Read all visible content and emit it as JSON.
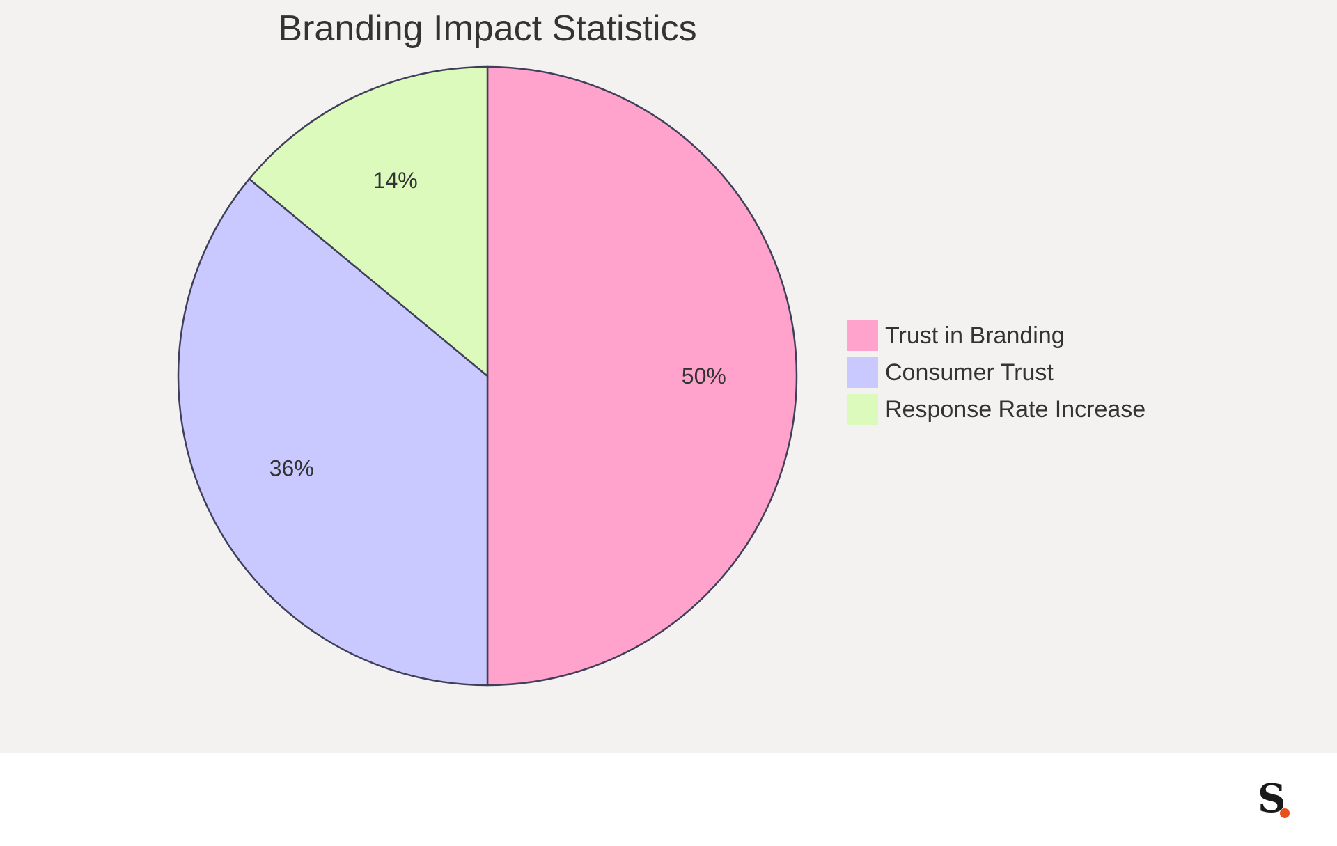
{
  "colors": {
    "background": "#f3f2f1",
    "footer": "#ffffff",
    "stroke": "#3f3f5a",
    "text": "#333333",
    "logo_dot": "#e8501c"
  },
  "logo": {
    "letter": "S",
    "icon": "brand-s-logo-icon"
  },
  "chart_data": {
    "type": "pie",
    "title": "Branding Impact Statistics",
    "legend_position": "right",
    "slices": [
      {
        "name": "Trust in Branding",
        "value": 50,
        "label": "50%",
        "color": "#ffa3cc"
      },
      {
        "name": "Consumer Trust",
        "value": 36,
        "label": "36%",
        "color": "#c9c9ff"
      },
      {
        "name": "Response Rate Increase",
        "value": 14,
        "label": "14%",
        "color": "#dcfabb"
      }
    ]
  }
}
